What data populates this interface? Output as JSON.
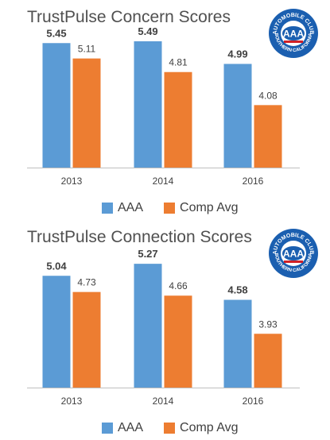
{
  "logo": {
    "top_text": "AUTOMOBILE CLUB",
    "center_text": "AAA",
    "bottom_text": "SOUTHERN CALIFORNIA",
    "colors": {
      "blue": "#1b5fb0",
      "red": "#d02027"
    }
  },
  "chart_data": [
    {
      "type": "bar",
      "title": "TrustPulse Concern Scores",
      "categories": [
        "2013",
        "2014",
        "2016"
      ],
      "series": [
        {
          "name": "AAA",
          "color": "#5b9bd5",
          "values": [
            5.45,
            5.49,
            4.99
          ],
          "labels": [
            "5.45",
            "5.49",
            "4.99"
          ]
        },
        {
          "name": "Comp Avg",
          "color": "#ed7d31",
          "values": [
            5.11,
            4.81,
            4.08
          ],
          "labels": [
            "5.11",
            "4.81",
            "4.08"
          ]
        }
      ],
      "ylim": [
        2.7,
        5.7
      ],
      "grid": false,
      "legend": "bottom"
    },
    {
      "type": "bar",
      "title": "TrustPulse Connection Scores",
      "categories": [
        "2013",
        "2014",
        "2016"
      ],
      "series": [
        {
          "name": "AAA",
          "color": "#5b9bd5",
          "values": [
            5.04,
            5.27,
            4.58
          ],
          "labels": [
            "5.04",
            "5.27",
            "4.58"
          ]
        },
        {
          "name": "Comp Avg",
          "color": "#ed7d31",
          "values": [
            4.73,
            4.66,
            3.93
          ],
          "labels": [
            "4.73",
            "4.66",
            "3.93"
          ]
        }
      ],
      "ylim": [
        2.9,
        5.5
      ],
      "grid": false,
      "legend": "bottom"
    }
  ]
}
